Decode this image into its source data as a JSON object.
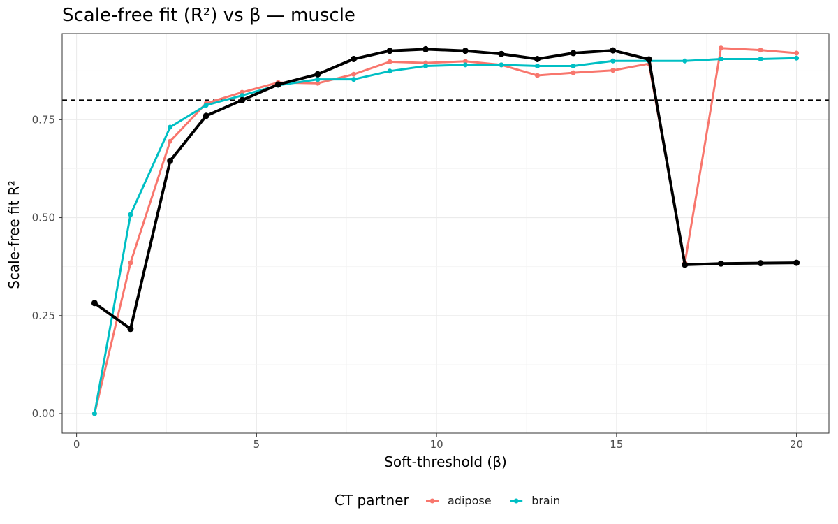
{
  "chart_data": {
    "type": "line",
    "title": "Scale-free fit (R²) vs β — muscle",
    "xlabel": "Soft-threshold (β)",
    "ylabel": "Scale-free fit R²",
    "xlim": [
      -0.4,
      20.9
    ],
    "ylim": [
      -0.05,
      0.97
    ],
    "x_ticks": [
      0,
      5,
      10,
      15,
      20
    ],
    "x_tick_labels": [
      "0",
      "5",
      "10",
      "15",
      "20"
    ],
    "y_ticks": [
      0,
      0.25,
      0.5,
      0.75
    ],
    "y_tick_labels": [
      "0.00",
      "0.25",
      "0.50",
      "0.75"
    ],
    "grid": true,
    "reference_line": {
      "y": 0.8,
      "style": "dashed",
      "color": "#000000"
    },
    "legend": {
      "title": "CT partner",
      "position": "bottom",
      "entries": [
        "adipose",
        "brain"
      ]
    },
    "series": [
      {
        "name": "adipose",
        "color": "#F8766D",
        "x": [
          0.5,
          1.5,
          2.6,
          3.6,
          4.6,
          5.6,
          6.7,
          7.7,
          8.7,
          9.7,
          10.8,
          11.8,
          12.8,
          13.8,
          14.9,
          15.9,
          16.9,
          17.9,
          19.0,
          20.0
        ],
        "values": [
          0.0,
          0.385,
          0.695,
          0.792,
          0.82,
          0.845,
          0.843,
          0.866,
          0.898,
          0.895,
          0.899,
          0.89,
          0.863,
          0.87,
          0.876,
          0.893,
          0.385,
          0.933,
          0.928,
          0.92
        ]
      },
      {
        "name": "brain",
        "color": "#00BFC4",
        "x": [
          0.5,
          1.5,
          2.6,
          3.6,
          4.6,
          5.6,
          6.7,
          7.7,
          8.7,
          9.7,
          10.8,
          11.8,
          12.8,
          13.8,
          14.9,
          15.9,
          16.9,
          17.9,
          19.0,
          20.0
        ],
        "values": [
          0.0,
          0.508,
          0.731,
          0.787,
          0.812,
          0.838,
          0.853,
          0.853,
          0.874,
          0.887,
          0.89,
          0.89,
          0.887,
          0.887,
          0.9,
          0.9,
          0.9,
          0.905,
          0.905,
          0.907
        ]
      },
      {
        "name": "",
        "color": "#000000",
        "x": [
          0.5,
          1.5,
          2.6,
          3.6,
          4.6,
          5.6,
          6.7,
          7.7,
          8.7,
          9.7,
          10.8,
          11.8,
          12.8,
          13.8,
          14.9,
          15.9,
          16.9,
          17.9,
          19.0,
          20.0
        ],
        "values": [
          0.282,
          0.216,
          0.645,
          0.76,
          0.8,
          0.84,
          0.866,
          0.905,
          0.926,
          0.93,
          0.926,
          0.918,
          0.905,
          0.92,
          0.927,
          0.904,
          0.38,
          0.383,
          0.384,
          0.385
        ]
      }
    ]
  }
}
